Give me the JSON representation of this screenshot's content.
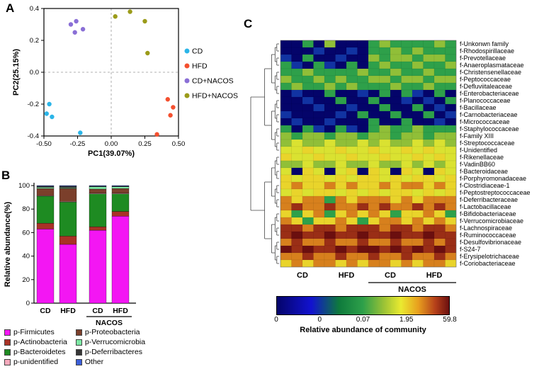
{
  "panels": {
    "a_label": "A",
    "b_label": "B",
    "c_label": "C"
  },
  "chart_data": [
    {
      "type": "scatter",
      "name": "pca-plot",
      "xlabel": "PC1(39.07%)",
      "ylabel": "PC2(25.15%)",
      "xlim": [
        -0.5,
        0.5
      ],
      "ylim": [
        -0.4,
        0.4
      ],
      "x_ticks": [
        -0.5,
        -0.25,
        0,
        0.25,
        0.5
      ],
      "x_tick_labels": [
        "-0.50",
        "-0.25",
        "0.00",
        "0.25",
        "0.50"
      ],
      "y_ticks": [
        -0.4,
        -0.2,
        0,
        0.2,
        0.4
      ],
      "y_tick_labels": [
        "-0.4",
        "-0.2",
        "0.0",
        "0.2",
        "0.4"
      ],
      "zero_lines": true,
      "legend_position": "right",
      "series": [
        {
          "name": "CD",
          "color": "#2BB5E8",
          "points": [
            [
              -0.46,
              -0.2
            ],
            [
              -0.48,
              -0.26
            ],
            [
              -0.44,
              -0.28
            ],
            [
              -0.23,
              -0.38
            ]
          ]
        },
        {
          "name": "HFD",
          "color": "#F4502F",
          "points": [
            [
              0.42,
              -0.17
            ],
            [
              0.46,
              -0.22
            ],
            [
              0.44,
              -0.27
            ],
            [
              0.34,
              -0.39
            ]
          ]
        },
        {
          "name": "CD+NACOS",
          "color": "#8A6FD6",
          "points": [
            [
              -0.3,
              0.3
            ],
            [
              -0.26,
              0.32
            ],
            [
              -0.27,
              0.25
            ],
            [
              -0.21,
              0.27
            ]
          ]
        },
        {
          "name": "HFD+NACOS",
          "color": "#9B9B1A",
          "points": [
            [
              0.03,
              0.35
            ],
            [
              0.14,
              0.38
            ],
            [
              0.25,
              0.32
            ],
            [
              0.27,
              0.12
            ]
          ]
        }
      ]
    },
    {
      "type": "bar",
      "name": "relative-abundance-stacked-bars",
      "stacked": true,
      "ylabel": "Relative abundance(%)",
      "ylim": [
        0,
        100
      ],
      "y_ticks": [
        0,
        20,
        40,
        60,
        80,
        100
      ],
      "categories": [
        "CD",
        "HFD",
        "CD",
        "HFD"
      ],
      "group_annotation": {
        "label": "NACOS",
        "span": [
          2,
          3
        ]
      },
      "series": [
        {
          "name": "p-Firmicutes",
          "color": "#F316F3",
          "values": [
            63,
            50,
            62,
            74
          ]
        },
        {
          "name": "p-Actinobacteria",
          "color": "#A93226",
          "values": [
            5,
            7,
            3,
            4
          ]
        },
        {
          "name": "p-Bacteroidetes",
          "color": "#1E8B22",
          "values": [
            23,
            29,
            28,
            15
          ]
        },
        {
          "name": "p-unidentified",
          "color": "#F5A9BC",
          "values": [
            0.5,
            0.5,
            0.5,
            0.5
          ]
        },
        {
          "name": "p-Proteobacteria",
          "color": "#7B3F2B",
          "values": [
            6,
            11,
            3.5,
            4
          ]
        },
        {
          "name": "p-Verrucomicrobia",
          "color": "#7CE8A4",
          "values": [
            1,
            0.5,
            2,
            1.5
          ]
        },
        {
          "name": "p-Deferribacteres",
          "color": "#363636",
          "values": [
            1,
            1.5,
            0.5,
            0.5
          ]
        },
        {
          "name": "Other",
          "color": "#3B5FD9",
          "values": [
            0.5,
            0.5,
            0.5,
            0.5
          ]
        }
      ]
    },
    {
      "type": "heatmap",
      "name": "family-abundance-heatmap",
      "rows": [
        "f-Unkonwn family",
        "f-Rhodospirillaceae",
        "f-Prevotellaceae",
        "f-Anaeroplasmataceae",
        "f-Christensenellaceae",
        "f-Peptococcaceae",
        "f-Defluviitaleaceae",
        "f-Enterobacteriaceae",
        "f-Planococcaceae",
        "f-Bacillaceae",
        "f-Carnobacteriaceae",
        "f-Micrococcaceae",
        "f-Staphylococcaceae",
        "f-Family XIII",
        "f-Streptococcaceae",
        "f-Unidentified",
        "f-Rikenellaceae",
        "f-VadinBB60",
        "f-Bacteroidaceae",
        "f-Porphyromonadaceae",
        "f-Clostridiaceae-1",
        "f-Peptostreptococcaceae",
        "f-Deferribacteraceae",
        "f-Lactobacillaceae",
        "f-Bifidobacteriaceae",
        "f-Verrucomicrobiaceae",
        "f-Lachnospiraceae",
        "f-Ruminococcaceae",
        "f-Desulfovibrionaceae",
        "f-S24-7",
        "f-Erysipelotrichaceae",
        "f-Coriobacteriaceae"
      ],
      "column_groups": [
        {
          "label": "CD",
          "cols": 4
        },
        {
          "label": "HFD",
          "cols": 4
        },
        {
          "label": "CD",
          "cols": 4
        },
        {
          "label": "HFD",
          "cols": 4
        }
      ],
      "group_annotation": {
        "label": "NACOS",
        "span_groups": [
          2,
          3
        ]
      },
      "values": [
        [
          0,
          0,
          0.07,
          0,
          0.3,
          0,
          0,
          0,
          0.07,
          0.3,
          0.07,
          0.07,
          0.07,
          0.07,
          0.3,
          0.07
        ],
        [
          0,
          0,
          0,
          0.002,
          0,
          0,
          0.002,
          0,
          0.07,
          0.07,
          0.3,
          0.07,
          0.3,
          0.07,
          0.07,
          0.07
        ],
        [
          0.002,
          0,
          0.07,
          0,
          0,
          0.002,
          0,
          0,
          0.3,
          0.07,
          0.3,
          0.3,
          0.07,
          0.3,
          0.3,
          0.07
        ],
        [
          0.07,
          0.002,
          0,
          0.07,
          0.002,
          0,
          0.07,
          0,
          0.07,
          0.3,
          0.07,
          0.07,
          0.3,
          0.07,
          0.07,
          0.3
        ],
        [
          0.07,
          0.07,
          0.3,
          0.07,
          0.07,
          0.07,
          0.07,
          0.3,
          0.07,
          0.07,
          0.3,
          0.07,
          0.07,
          0.3,
          0.07,
          0.07
        ],
        [
          0.3,
          0.07,
          0.07,
          0.3,
          0.07,
          0.3,
          0.07,
          0.07,
          0.3,
          0.3,
          0.07,
          0.3,
          0.3,
          0.07,
          0.3,
          0.3
        ],
        [
          0.07,
          0.3,
          0.07,
          0.07,
          0.3,
          0.07,
          0.3,
          0.07,
          0.07,
          0.07,
          0.3,
          0.07,
          0.07,
          0.3,
          0.07,
          0.07
        ],
        [
          0,
          0.002,
          0,
          0,
          0.07,
          0,
          0,
          0.002,
          0,
          0.07,
          0,
          0.07,
          0.002,
          0,
          0.07,
          0
        ],
        [
          0,
          0,
          0.002,
          0,
          0,
          0.07,
          0,
          0,
          0.07,
          0,
          0,
          0.002,
          0,
          0.002,
          0,
          0.07
        ],
        [
          0,
          0,
          0,
          0.002,
          0,
          0,
          0.002,
          0,
          0,
          0.07,
          0,
          0,
          0.07,
          0,
          0.002,
          0
        ],
        [
          0.002,
          0,
          0,
          0,
          0,
          0.002,
          0,
          0.07,
          0,
          0,
          0.07,
          0,
          0,
          0.07,
          0,
          0.002
        ],
        [
          0,
          0.002,
          0,
          0,
          0.002,
          0,
          0,
          0,
          0.07,
          0,
          0,
          0.07,
          0,
          0,
          0.002,
          0
        ],
        [
          0.07,
          0,
          0.07,
          0.002,
          0,
          0.07,
          0.002,
          0,
          0.07,
          0.3,
          0.07,
          0.07,
          0.3,
          0.07,
          0.07,
          0.07
        ],
        [
          0.3,
          0.07,
          0.3,
          0.3,
          0.07,
          0.3,
          0.3,
          0.07,
          0.3,
          0.3,
          0.07,
          0.3,
          0.3,
          0.07,
          0.3,
          0.3
        ],
        [
          0.3,
          1,
          0.3,
          0.3,
          1,
          0.3,
          0.3,
          1,
          0.3,
          1,
          0.3,
          0.3,
          1,
          0.3,
          1,
          0.3
        ],
        [
          1,
          1,
          1.95,
          1,
          1,
          1.95,
          1,
          1,
          1.95,
          1,
          1,
          1.95,
          1,
          1.95,
          1,
          1
        ],
        [
          1.95,
          1,
          1,
          1.95,
          1,
          1,
          1.95,
          1,
          1,
          1.95,
          1,
          1,
          1.95,
          1,
          1.95,
          1
        ],
        [
          0.3,
          0.3,
          1,
          0.3,
          0.3,
          1,
          0.3,
          0.3,
          1,
          0.3,
          0.3,
          1,
          0.3,
          1,
          0.3,
          1
        ],
        [
          1,
          0,
          1.95,
          1,
          0,
          1,
          1.95,
          0,
          1.95,
          1,
          0,
          1.95,
          1,
          0,
          1.95,
          1
        ],
        [
          1.95,
          1,
          1.95,
          1.95,
          1,
          1.95,
          1,
          1.95,
          1.95,
          1,
          1.95,
          1,
          1.95,
          1.95,
          1,
          1.95
        ],
        [
          1.95,
          8,
          1.95,
          1.95,
          8,
          1.95,
          8,
          1.95,
          1.95,
          8,
          1.95,
          8,
          8,
          1.95,
          8,
          1.95
        ],
        [
          1,
          1.95,
          1,
          1.95,
          1.95,
          1,
          1.95,
          1,
          1.95,
          1,
          1.95,
          1.95,
          1,
          1.95,
          1,
          1.95
        ],
        [
          8,
          1.95,
          8,
          8,
          0.07,
          8,
          1.95,
          8,
          8,
          8,
          1.95,
          8,
          1.95,
          8,
          8,
          8
        ],
        [
          8,
          30,
          8,
          8,
          30,
          8,
          8,
          30,
          8,
          30,
          8,
          8,
          30,
          8,
          30,
          8
        ],
        [
          1.95,
          0.07,
          1.95,
          8,
          0.07,
          1.95,
          8,
          1.95,
          8,
          1.95,
          0.07,
          1.95,
          1.95,
          8,
          1.95,
          0.07
        ],
        [
          8,
          1.95,
          0.07,
          1.95,
          1.95,
          8,
          1.95,
          0.07,
          1.95,
          8,
          8,
          1.95,
          8,
          1.95,
          8,
          1.95
        ],
        [
          30,
          30,
          8,
          30,
          30,
          8,
          30,
          30,
          30,
          8,
          30,
          30,
          8,
          30,
          30,
          8
        ],
        [
          30,
          59.8,
          30,
          30,
          59.8,
          30,
          30,
          59.8,
          30,
          30,
          59.8,
          30,
          30,
          59.8,
          30,
          30
        ],
        [
          8,
          30,
          8,
          8,
          30,
          8,
          8,
          30,
          8,
          8,
          30,
          8,
          8,
          30,
          8,
          30
        ],
        [
          59.8,
          30,
          59.8,
          30,
          30,
          59.8,
          30,
          59.8,
          59.8,
          30,
          59.8,
          30,
          59.8,
          30,
          59.8,
          30
        ],
        [
          8,
          8,
          30,
          8,
          8,
          30,
          8,
          8,
          30,
          8,
          8,
          30,
          8,
          8,
          30,
          8
        ],
        [
          1.95,
          8,
          1.95,
          8,
          8,
          1.95,
          8,
          1.95,
          8,
          8,
          1.95,
          8,
          1.95,
          8,
          8,
          1.95
        ]
      ],
      "colormap": [
        {
          "pos": 0,
          "color": "#04046A"
        },
        {
          "pos": 0.2,
          "color": "#1212D0"
        },
        {
          "pos": 0.36,
          "color": "#0E7A3C"
        },
        {
          "pos": 0.5,
          "color": "#2EA04A"
        },
        {
          "pos": 0.62,
          "color": "#9AC236"
        },
        {
          "pos": 0.72,
          "color": "#EAEA30"
        },
        {
          "pos": 0.82,
          "color": "#E8A01E"
        },
        {
          "pos": 0.92,
          "color": "#B5401A"
        },
        {
          "pos": 1,
          "color": "#6B0F0F"
        }
      ],
      "scale_anchors": {
        "values": [
          0.002,
          0.07,
          1.95,
          59.8
        ],
        "positions": [
          0.25,
          0.5,
          0.75,
          1.0
        ]
      },
      "colorbar": {
        "tick_labels": [
          "0",
          "0",
          "0.07",
          "1.95",
          "59.8"
        ],
        "tick_positions": [
          0,
          0.25,
          0.5,
          0.75,
          1
        ],
        "label": "Relative abundance of community"
      }
    }
  ]
}
